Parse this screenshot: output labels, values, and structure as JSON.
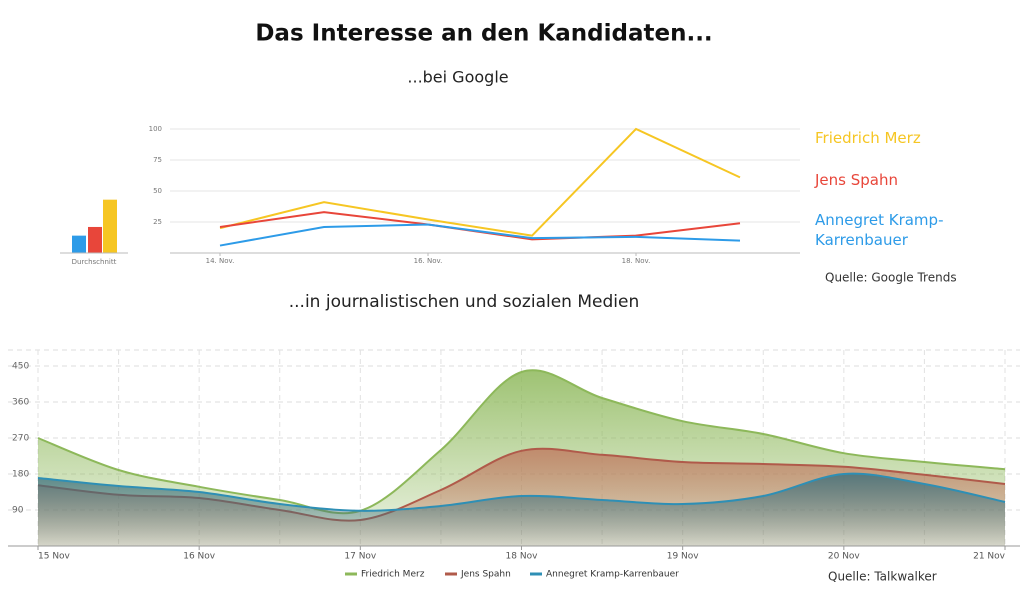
{
  "title": "Das Interesse an den Kandidaten...",
  "subtitle_google": "...bei Google",
  "source_google": "Quelle: Google Trends",
  "subtitle_media": "...in journalistischen und sozialen Medien",
  "source_media": "Quelle: Talkwalker",
  "chart_data": [
    {
      "type": "bar",
      "xlabel": "Durchschnitt",
      "values": [
        14,
        21,
        43
      ],
      "colors": [
        "#2d9be8",
        "#e8463a",
        "#f6c623"
      ],
      "ylim": [
        0,
        100
      ]
    },
    {
      "type": "line",
      "x": [
        14,
        15,
        16,
        17,
        18,
        19
      ],
      "series": [
        {
          "name": "Friedrich Merz",
          "color": "#f6c623",
          "values": [
            20,
            41,
            27,
            14,
            100,
            61
          ]
        },
        {
          "name": "Jens Spahn",
          "color": "#e8463a",
          "values": [
            21,
            33,
            23,
            11,
            14,
            24
          ]
        },
        {
          "name": "Annegret Kramp-Karrenbauer",
          "color": "#2d9be8",
          "values": [
            6,
            21,
            23,
            12,
            13,
            10
          ]
        }
      ],
      "xlim": [
        13.5,
        19.5
      ],
      "xticks": [
        {
          "value": 14,
          "label": "14. Nov."
        },
        {
          "value": 16,
          "label": "16. Nov."
        },
        {
          "value": 18,
          "label": "18. Nov."
        }
      ],
      "ylim": [
        0,
        100
      ],
      "yticks": [
        25,
        50,
        75,
        100
      ],
      "grid": true
    },
    {
      "type": "area",
      "x": [
        15,
        15.5,
        16,
        16.5,
        17,
        17.5,
        18,
        18.5,
        19,
        19.5,
        20,
        20.5,
        21
      ],
      "series": [
        {
          "name": "Friedrich Merz",
          "color": "#8db85a",
          "values": [
            270,
            190,
            148,
            115,
            88,
            240,
            435,
            370,
            312,
            280,
            232,
            210,
            192
          ]
        },
        {
          "name": "Jens Spahn",
          "color": "#b05a4a",
          "values": [
            152,
            128,
            120,
            90,
            65,
            140,
            238,
            228,
            210,
            205,
            198,
            178,
            155
          ]
        },
        {
          "name": "Annegret Kramp-Karrenbauer",
          "color": "#2e8fb5",
          "values": [
            170,
            150,
            135,
            105,
            88,
            100,
            125,
            115,
            105,
            125,
            180,
            155,
            110
          ]
        }
      ],
      "xlim": [
        15,
        21
      ],
      "xticks": [
        {
          "value": 15,
          "label": "15 Nov"
        },
        {
          "value": 16,
          "label": "16 Nov"
        },
        {
          "value": 17,
          "label": "17 Nov"
        },
        {
          "value": 18,
          "label": "18 Nov"
        },
        {
          "value": 19,
          "label": "19 Nov"
        },
        {
          "value": 20,
          "label": "20 Nov"
        },
        {
          "value": 21,
          "label": "21 Nov"
        }
      ],
      "ylim": [
        0,
        490
      ],
      "yticks": [
        90,
        180,
        270,
        360,
        450
      ],
      "grid": true
    }
  ]
}
